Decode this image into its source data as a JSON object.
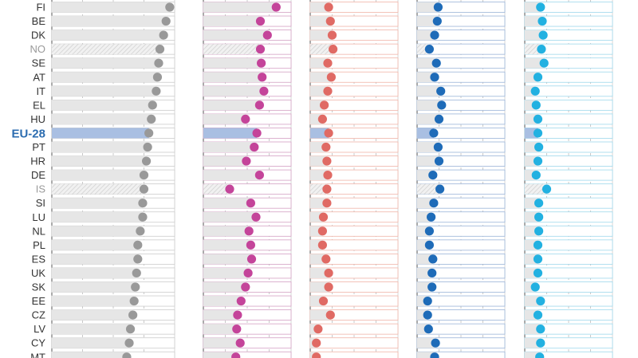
{
  "chart_data": {
    "type": "dot",
    "highlight_country": "EU-28",
    "hatched_countries": [
      "NO",
      "IS"
    ],
    "countries": [
      "FI",
      "BE",
      "DK",
      "NO",
      "SE",
      "AT",
      "IT",
      "EL",
      "HU",
      "EU-28",
      "PT",
      "HR",
      "DE",
      "IS",
      "SI",
      "LU",
      "NL",
      "PL",
      "ES",
      "UK",
      "SK",
      "EE",
      "CZ",
      "LV",
      "CY",
      "MT"
    ],
    "panel_range": [
      0,
      100
    ],
    "panels": [
      {
        "color": "#999999",
        "band_color": "#cccccc",
        "values": [
          96,
          93,
          91,
          88,
          87,
          86,
          85,
          82,
          81,
          79,
          78,
          77,
          75,
          75,
          74,
          74,
          72,
          70,
          70,
          69,
          68,
          67,
          66,
          64,
          63,
          61
        ]
      },
      {
        "color": "#c4449a",
        "band_color": "#d4a0c4",
        "values": [
          83,
          65,
          73,
          65,
          66,
          67,
          69,
          64,
          48,
          61,
          58,
          49,
          64,
          30,
          54,
          60,
          52,
          54,
          55,
          51,
          48,
          43,
          39,
          38,
          42,
          37
        ]
      },
      {
        "color": "#e06a64",
        "band_color": "#f0b4a8",
        "values": [
          21,
          23,
          25,
          26,
          20,
          24,
          20,
          16,
          14,
          21,
          18,
          19,
          20,
          19,
          19,
          15,
          14,
          14,
          18,
          21,
          21,
          15,
          23,
          9,
          7,
          7
        ]
      },
      {
        "color": "#1e6bb8",
        "band_color": "#9ab4d8",
        "values": [
          24,
          23,
          20,
          14,
          22,
          20,
          27,
          28,
          25,
          19,
          24,
          25,
          18,
          26,
          19,
          16,
          14,
          14,
          18,
          17,
          17,
          12,
          12,
          13,
          21,
          20
        ]
      },
      {
        "color": "#22b1e1",
        "band_color": "#9ed8ec",
        "values": [
          18,
          20,
          21,
          19,
          22,
          15,
          12,
          13,
          15,
          15,
          16,
          15,
          13,
          25,
          16,
          16,
          16,
          15,
          15,
          15,
          12,
          18,
          15,
          18,
          18,
          17
        ]
      }
    ]
  }
}
